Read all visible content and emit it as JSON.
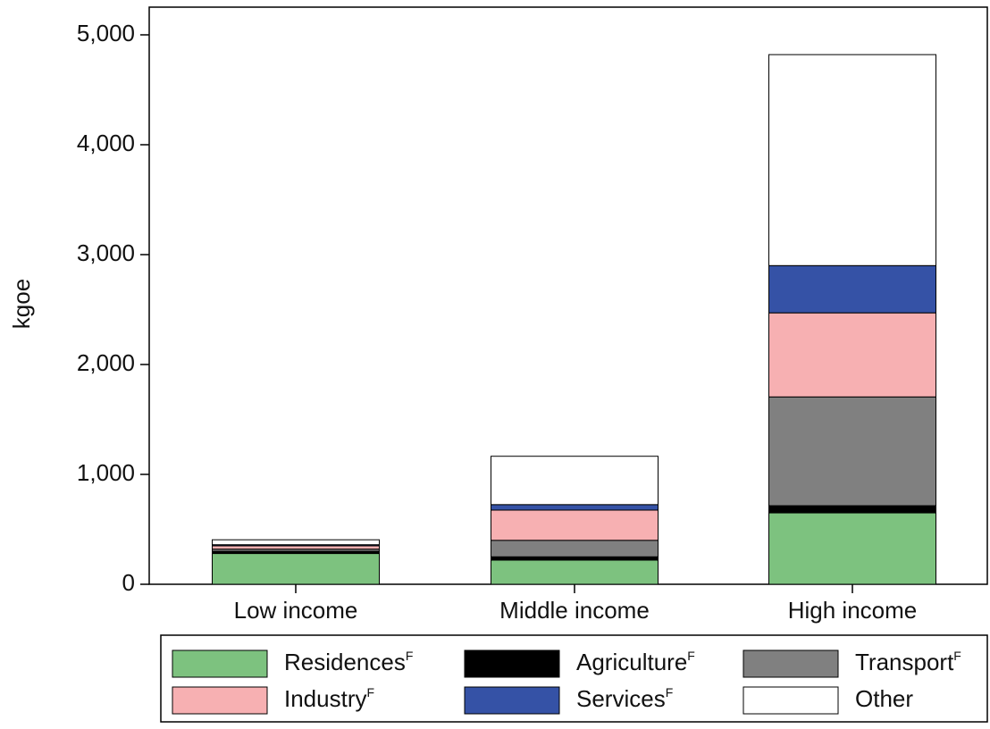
{
  "chart_data": {
    "type": "stacked_bar",
    "y_label": "kgoe",
    "categories": [
      "Low income",
      "Middle income",
      "High income"
    ],
    "series": [
      {
        "name": "Residences",
        "note": "F",
        "color": "#7dc27f",
        "values": [
          280,
          220,
          650
        ]
      },
      {
        "name": "Agriculture",
        "note": "F",
        "color": "#000000",
        "values": [
          20,
          30,
          65
        ]
      },
      {
        "name": "Transport",
        "note": "F",
        "color": "#808080",
        "values": [
          20,
          150,
          990
        ]
      },
      {
        "name": "Industry",
        "note": "F",
        "color": "#f7b0b2",
        "values": [
          30,
          275,
          765
        ]
      },
      {
        "name": "Services",
        "note": "F",
        "color": "#3552a6",
        "values": [
          10,
          50,
          430
        ]
      },
      {
        "name": "Other",
        "color": "#ffffff",
        "values": [
          45,
          440,
          1920
        ]
      }
    ],
    "ylim": [
      0,
      5000
    ],
    "yticks": [
      0,
      {
        "value": 1000,
        "label": "1,000"
      },
      {
        "value": 2000,
        "label": "2,000"
      },
      {
        "value": 3000,
        "label": "3,000"
      },
      {
        "value": 4000,
        "label": "4,000"
      },
      {
        "value": 5000,
        "label": "5,000"
      }
    ],
    "legend": "bottom"
  }
}
